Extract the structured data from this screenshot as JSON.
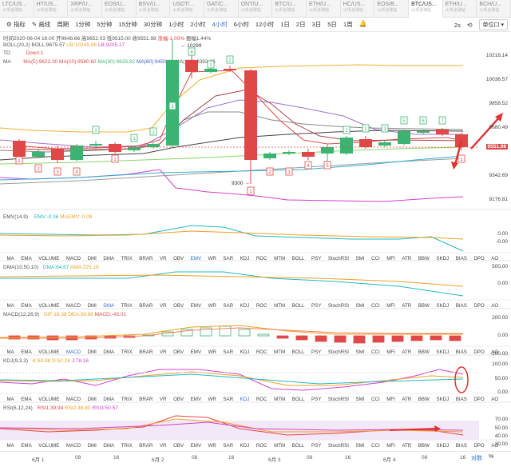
{
  "tabs": [
    {
      "name": "LTC/US...",
      "sub": "火币全球站"
    },
    {
      "name": "HT/US...",
      "sub": "火币全球站"
    },
    {
      "name": "XRP/U...",
      "sub": "火币全球站"
    },
    {
      "name": "EOS/U...",
      "sub": "火币全球站"
    },
    {
      "name": "BSV/U...",
      "sub": "火币全球站"
    },
    {
      "name": "USDT/...",
      "sub": "火币全球站"
    },
    {
      "name": "GAT/C...",
      "sub": "火币全球站"
    },
    {
      "name": "ONT/U...",
      "sub": "火币全球站"
    },
    {
      "name": "BTC/U...",
      "sub": "火币全球站"
    },
    {
      "name": "ETH/U...",
      "sub": "火币全球站"
    },
    {
      "name": "HC/US...",
      "sub": "火币全球站"
    },
    {
      "name": "EOS/B...",
      "sub": "火币全球站"
    },
    {
      "name": "BTC/US...",
      "sub": "火币全球站",
      "active": true
    },
    {
      "name": "ETH/U...",
      "sub": "火币全球站"
    },
    {
      "name": "BCH/U...",
      "sub": "火币全球站"
    }
  ],
  "toolbar": {
    "indicator": "指标",
    "draw": "画线",
    "period_label": "周期",
    "periods": [
      "1分钟",
      "5分钟",
      "15分钟",
      "30分钟",
      "1小时",
      "2小时",
      "4小时",
      "6小时",
      "12小时",
      "1日",
      "2日",
      "3日",
      "5日",
      "1周"
    ],
    "active_period": "4小时",
    "interval": "2s",
    "axis": "单位口"
  },
  "quote": {
    "time": "时间2020-06-04 16:00",
    "open": "开9648.66",
    "high": "高9652.03",
    "low": "低9515.00",
    "close": "收9551.98",
    "change": "涨幅-1.00%",
    "amplitude": "振幅1.44%"
  },
  "boll": {
    "name": "BOLL(20,2)",
    "mid": "BOLL:9675.57",
    "ub": "UB:10145.96",
    "lb": "LB:9205.17"
  },
  "td": {
    "name": "TD",
    "value": "Down:1"
  },
  "ma": {
    "name": "MA",
    "ma5": "MA(5):9622.30",
    "ma10": "MA(10):9580.60",
    "ma30": "MA(30):9633.82",
    "ma60": "MA(60):9450.19",
    "ma120": "MA(120):9392.66"
  },
  "main_axis": [
    "10218.14",
    "10036.57",
    "9858.52",
    "9680.49",
    "9551.98",
    "9342.69",
    "9176.81"
  ],
  "annotations": {
    "high": "10299",
    "low": "9300"
  },
  "emv": {
    "name": "EMV(14,9)",
    "emv": "EMV:-0.36",
    "maemv": "MAEMV:-0.09",
    "axis": [
      "0.00",
      "-0.00"
    ]
  },
  "dma": {
    "name": "DMA(10,50,10)",
    "dma": "DMA:64.67",
    "ama": "AMA:225.19",
    "axis": [
      "500.00",
      "0.00"
    ]
  },
  "macd": {
    "name": "MACD(12,26,9)",
    "dif": "DIF:18.38",
    "dea": "DEA:39.88",
    "macd": "MACD:-43.01",
    "axis": [
      "200.00",
      "0.00",
      "-200.00"
    ]
  },
  "kdj": {
    "name": "KDJ(9,3,3)",
    "k": "K:60.88",
    "d": "D:52.24",
    "j": "J:78.16",
    "axis": [
      "100.00",
      "50.00",
      "0.00"
    ]
  },
  "rsi": {
    "name": "RSI(6,12,24)",
    "r1": "RSI1:39.94",
    "r2": "RSI2:46.80",
    "r3": "RSI3:50.57",
    "axis": [
      "70.00",
      "50.00",
      "40.00",
      "30.00"
    ]
  },
  "indicator_tabs": [
    "MA",
    "EMA",
    "VOLUME",
    "MACD",
    "DMI",
    "DMA",
    "TRIX",
    "BRAR",
    "VR",
    "OBV",
    "EMV",
    "WR",
    "SAR",
    "KDJ",
    "ROC",
    "MTM",
    "BOLL",
    "PSY",
    "StochRSI",
    "SMI",
    "CCI",
    "MFI",
    "ATR",
    "BBW",
    "SKDJ",
    "BIAS",
    "DPO",
    "AO"
  ],
  "indicator_tabs_selected": [
    "EMV",
    "DMA",
    "MACD",
    "KDJ",
    "RSI"
  ],
  "dates": [
    "6月 1",
    "08",
    "16",
    "6月 2",
    "08",
    "16",
    "6月 3",
    "08",
    "16",
    "6月 4",
    "08",
    "16"
  ],
  "footer": {
    "log": "对数",
    "pct": "%"
  },
  "colors": {
    "up": "#3cb371",
    "down": "#e04848",
    "accent": "#2a6fd6",
    "annotation_arrow": "#e03030"
  }
}
